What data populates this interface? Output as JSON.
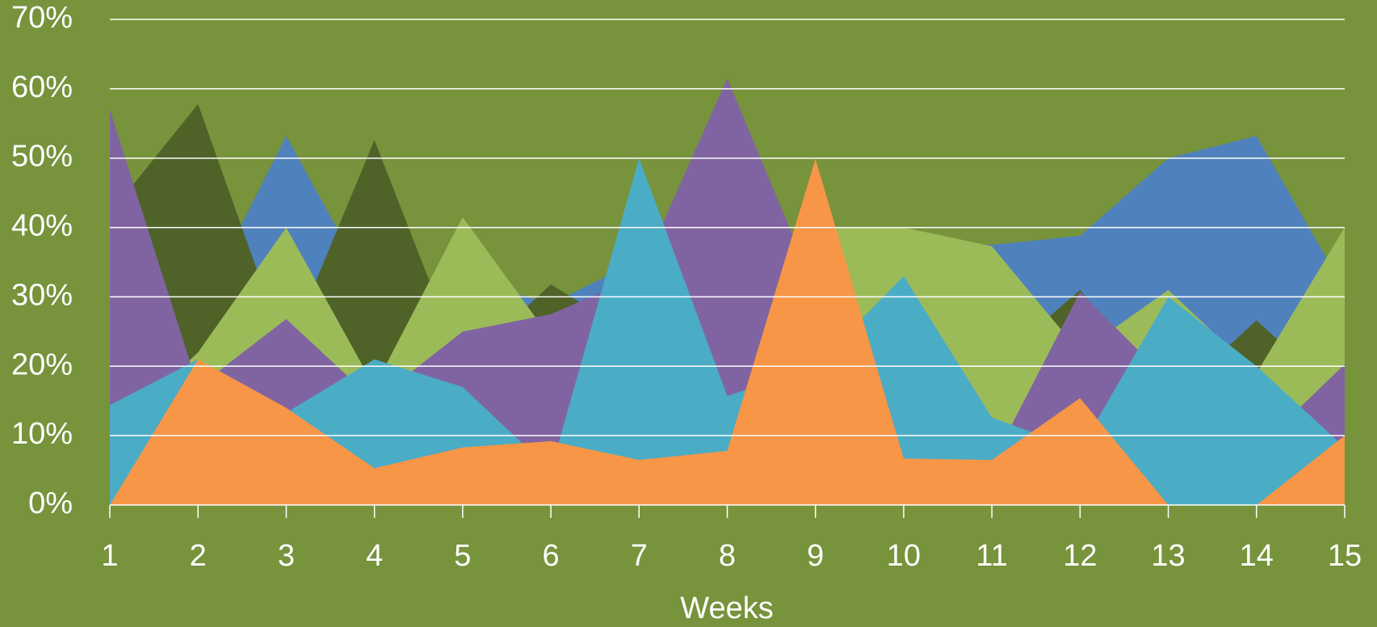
{
  "chart_data": {
    "type": "area",
    "x_label": "Weeks",
    "categories": [
      "1",
      "2",
      "3",
      "4",
      "5",
      "6",
      "7",
      "8",
      "9",
      "10",
      "11",
      "12",
      "13",
      "14",
      "15"
    ],
    "series": [
      {
        "color": "#4f81bd",
        "values": [
          30,
          28,
          53.2,
          30,
          32.8,
          29,
          35.3,
          35,
          38,
          38,
          37.5,
          38.8,
          50,
          53.2,
          31
        ]
      },
      {
        "color": "#4f6228",
        "values": [
          42,
          57.8,
          22,
          52.6,
          20,
          31.8,
          24,
          20,
          20,
          20,
          20,
          31,
          15,
          26.6,
          15
        ]
      },
      {
        "color": "#9bbb59",
        "values": [
          10,
          22,
          40,
          17,
          41.5,
          24,
          20,
          20,
          40,
          40,
          37.3,
          22,
          31,
          19,
          40
        ]
      },
      {
        "color": "#8064a2",
        "values": [
          57,
          17,
          26.8,
          15,
          25,
          27.5,
          33,
          61.5,
          31,
          20,
          6,
          30.7,
          18,
          8,
          20.3
        ]
      },
      {
        "color": "#4bacc6",
        "values": [
          14.4,
          21,
          13.3,
          21,
          17,
          5,
          50,
          15.7,
          20,
          33,
          12.6,
          8,
          30,
          20,
          8.3
        ]
      },
      {
        "color": "#f79646",
        "values": [
          0,
          21,
          14,
          5.3,
          8.3,
          9.2,
          6.5,
          7.8,
          49.9,
          6.7,
          6.5,
          15.4,
          0,
          0,
          10
        ]
      }
    ],
    "ylim": [
      0,
      70
    ],
    "yticks": [
      {
        "value": 0,
        "label": "0%"
      },
      {
        "value": 10,
        "label": "10%"
      },
      {
        "value": 20,
        "label": "20%"
      },
      {
        "value": 30,
        "label": "30%"
      },
      {
        "value": 40,
        "label": "40%"
      },
      {
        "value": 50,
        "label": "50%"
      },
      {
        "value": 60,
        "label": "60%"
      },
      {
        "value": 70,
        "label": "70%"
      }
    ],
    "grid": true
  }
}
